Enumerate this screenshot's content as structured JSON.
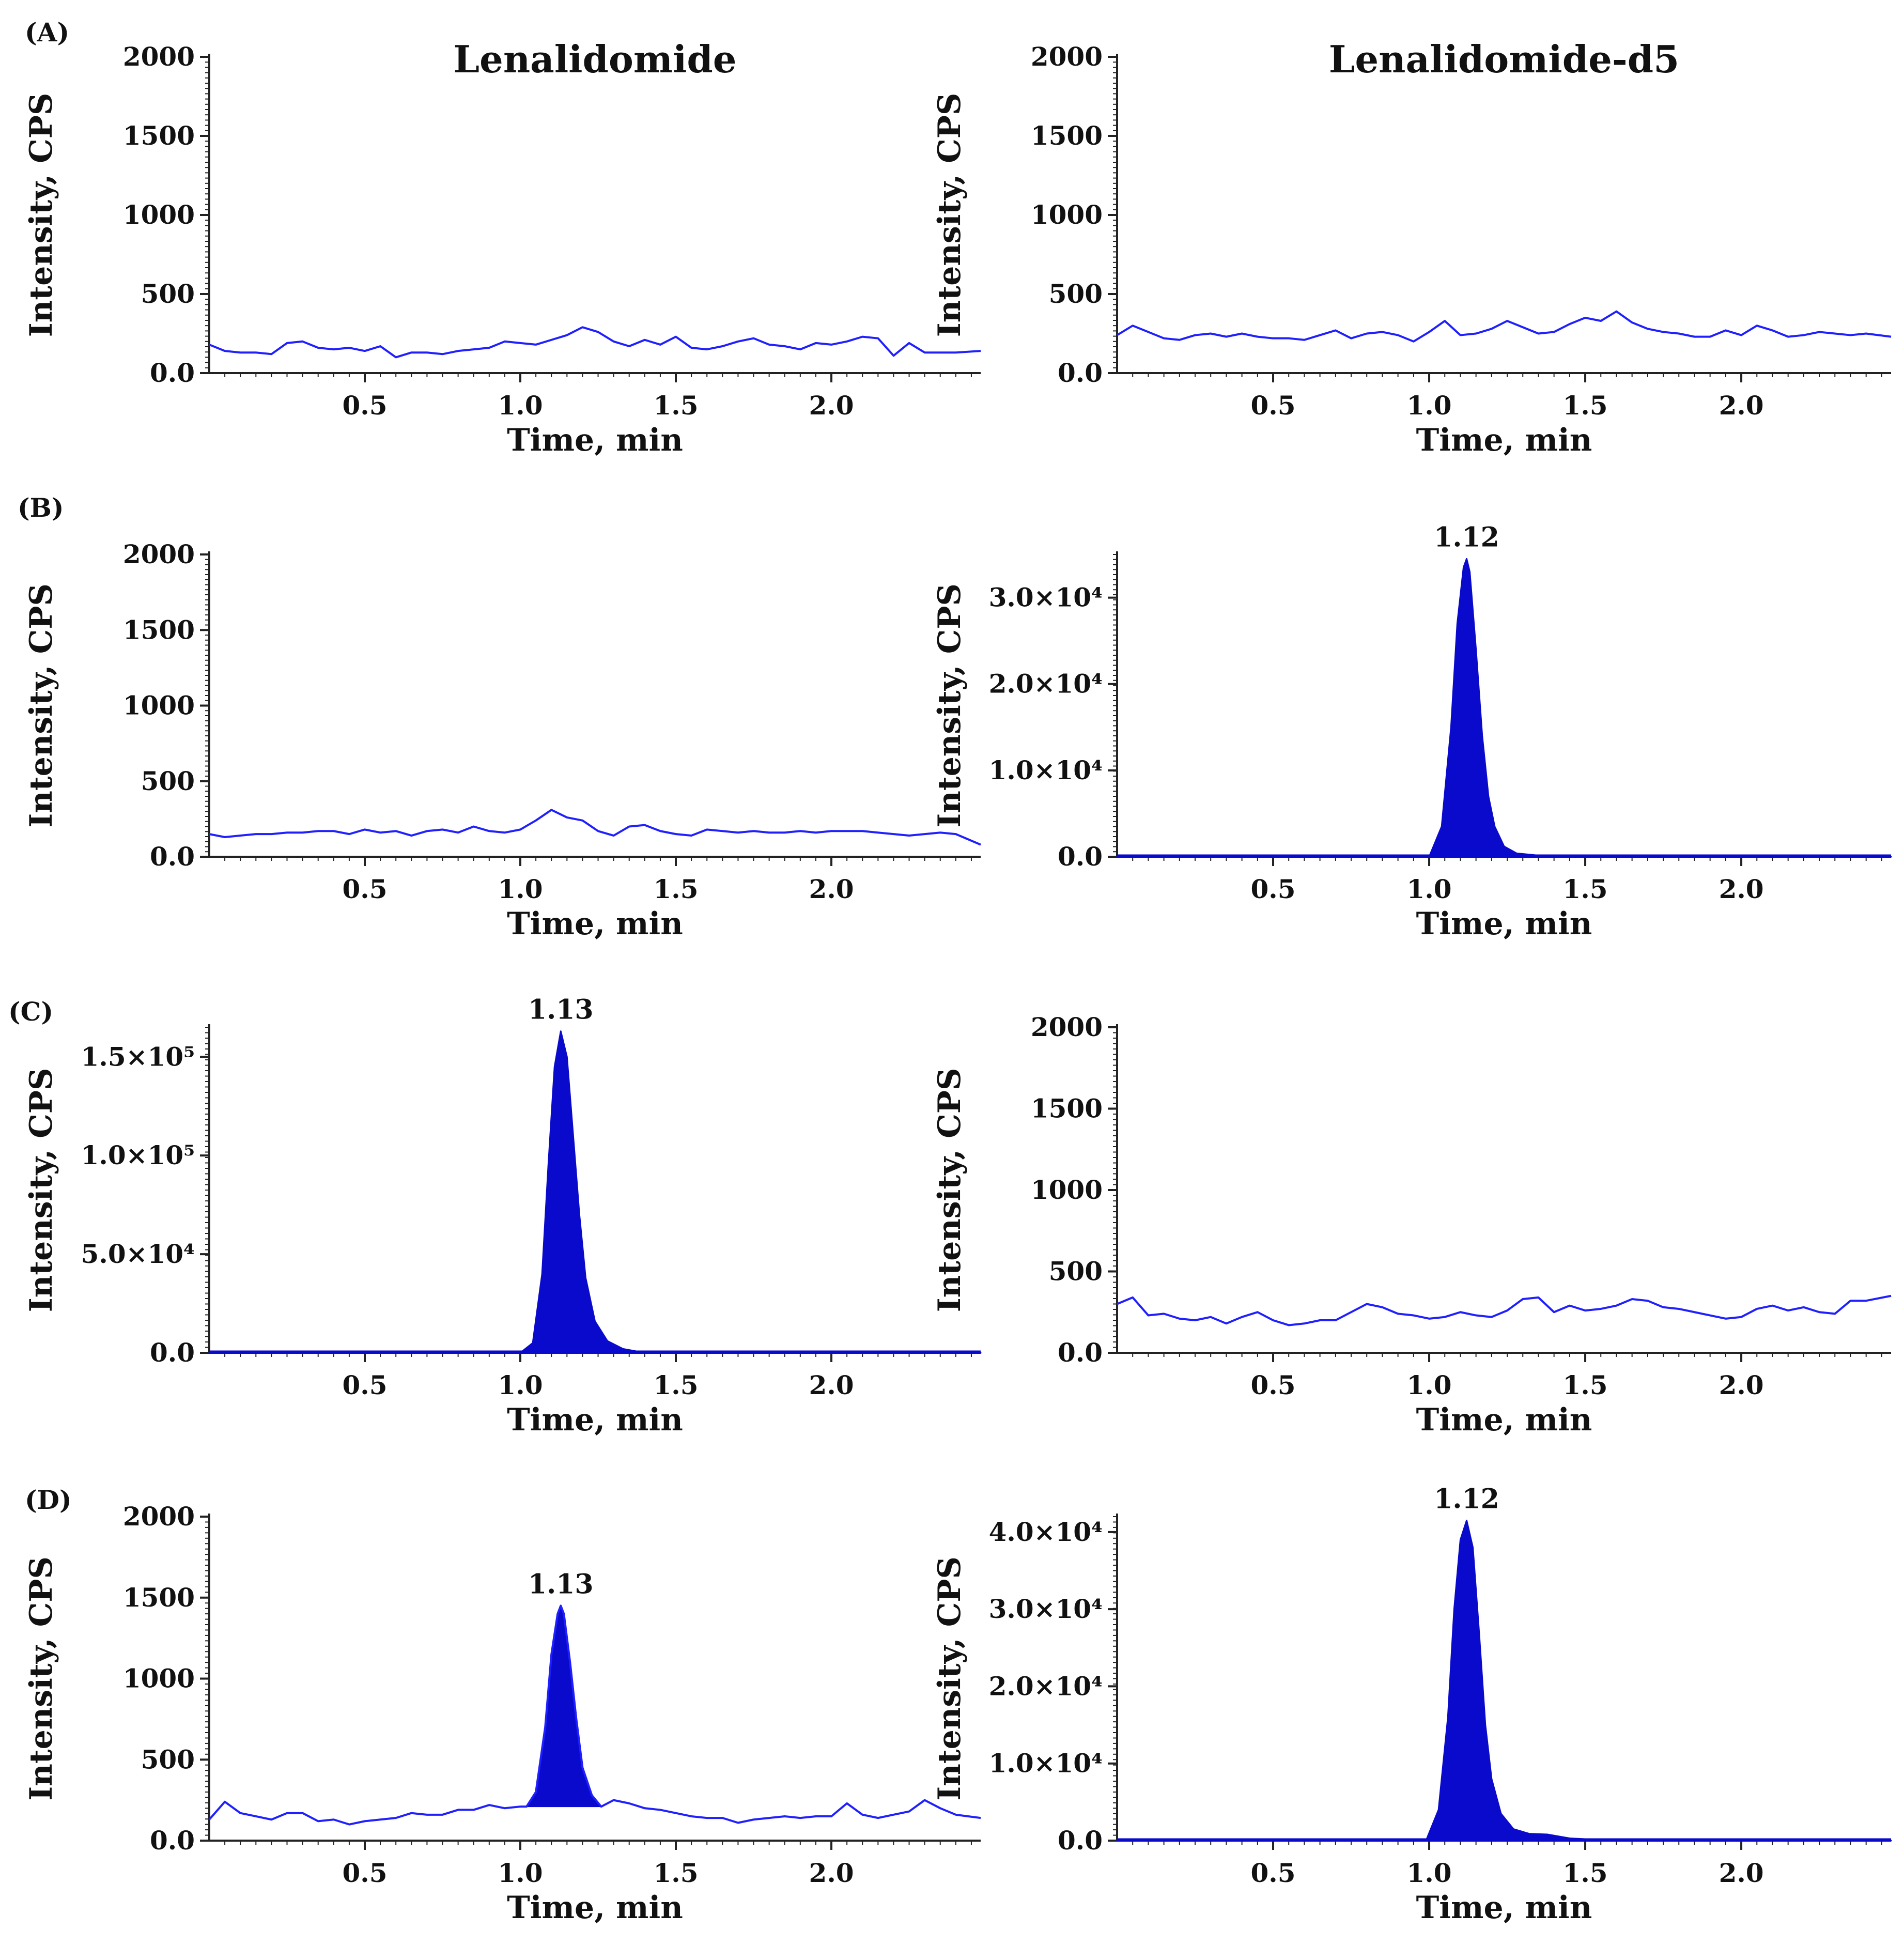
{
  "figure": {
    "panel_letters": [
      "(A)",
      "(B)",
      "(C)",
      "(D)"
    ]
  },
  "chart_data": [
    {
      "id": "A-left",
      "type": "line",
      "panel": "(A)",
      "title": "Lenalidomide",
      "xlabel": "Time, min",
      "ylabel": "Intensity, CPS",
      "xlim": [
        0,
        2.48
      ],
      "ylim": [
        0,
        2000
      ],
      "xticks": [
        0.5,
        1.0,
        1.5,
        2.0
      ],
      "xtick_labels": [
        "0.5",
        "1.0",
        "1.5",
        "2.0"
      ],
      "yticks": [
        0,
        500,
        1000,
        1500,
        2000
      ],
      "ytick_labels": [
        "0.0",
        "500",
        "1000",
        "1500",
        "2000"
      ],
      "line_color": "#1f1fff",
      "series": [
        {
          "name": "baseline",
          "x": [
            0.0,
            0.05,
            0.1,
            0.15,
            0.2,
            0.25,
            0.3,
            0.35,
            0.4,
            0.45,
            0.5,
            0.55,
            0.6,
            0.65,
            0.7,
            0.75,
            0.8,
            0.85,
            0.9,
            0.95,
            1.0,
            1.05,
            1.1,
            1.15,
            1.2,
            1.25,
            1.3,
            1.35,
            1.4,
            1.45,
            1.5,
            1.55,
            1.6,
            1.65,
            1.7,
            1.75,
            1.8,
            1.85,
            1.9,
            1.95,
            2.0,
            2.05,
            2.1,
            2.15,
            2.2,
            2.25,
            2.3,
            2.35,
            2.4,
            2.48
          ],
          "y": [
            180,
            140,
            130,
            130,
            120,
            190,
            200,
            160,
            150,
            160,
            140,
            170,
            100,
            130,
            130,
            120,
            140,
            150,
            160,
            200,
            190,
            180,
            210,
            240,
            290,
            260,
            200,
            170,
            210,
            180,
            230,
            160,
            150,
            170,
            200,
            220,
            180,
            170,
            150,
            190,
            180,
            200,
            230,
            220,
            110,
            190,
            130,
            130,
            130,
            140
          ]
        }
      ]
    },
    {
      "id": "A-right",
      "type": "line",
      "panel": "(A)",
      "title": "Lenalidomide-d5",
      "xlabel": "Time, min",
      "ylabel": "Intensity, CPS",
      "xlim": [
        0,
        2.48
      ],
      "ylim": [
        0,
        2000
      ],
      "xticks": [
        0.5,
        1.0,
        1.5,
        2.0
      ],
      "xtick_labels": [
        "0.5",
        "1.0",
        "1.5",
        "2.0"
      ],
      "yticks": [
        0,
        500,
        1000,
        1500,
        2000
      ],
      "ytick_labels": [
        "0.0",
        "500",
        "1000",
        "1500",
        "2000"
      ],
      "line_color": "#1f1fff",
      "series": [
        {
          "name": "baseline",
          "x": [
            0.0,
            0.05,
            0.1,
            0.15,
            0.2,
            0.25,
            0.3,
            0.35,
            0.4,
            0.45,
            0.5,
            0.55,
            0.6,
            0.65,
            0.7,
            0.75,
            0.8,
            0.85,
            0.9,
            0.95,
            1.0,
            1.05,
            1.1,
            1.15,
            1.2,
            1.25,
            1.3,
            1.35,
            1.4,
            1.45,
            1.5,
            1.55,
            1.6,
            1.65,
            1.7,
            1.75,
            1.8,
            1.85,
            1.9,
            1.95,
            2.0,
            2.05,
            2.1,
            2.15,
            2.2,
            2.25,
            2.3,
            2.35,
            2.4,
            2.48
          ],
          "y": [
            240,
            300,
            260,
            220,
            210,
            240,
            250,
            230,
            250,
            230,
            220,
            220,
            210,
            240,
            270,
            220,
            250,
            260,
            240,
            200,
            260,
            330,
            240,
            250,
            280,
            330,
            290,
            250,
            260,
            310,
            350,
            330,
            390,
            320,
            280,
            260,
            250,
            230,
            230,
            270,
            240,
            300,
            270,
            230,
            240,
            260,
            250,
            240,
            250,
            230
          ]
        }
      ]
    },
    {
      "id": "B-left",
      "type": "line",
      "panel": "(B)",
      "xlabel": "Time, min",
      "ylabel": "Intensity, CPS",
      "xlim": [
        0,
        2.48
      ],
      "ylim": [
        0,
        2000
      ],
      "xticks": [
        0.5,
        1.0,
        1.5,
        2.0
      ],
      "xtick_labels": [
        "0.5",
        "1.0",
        "1.5",
        "2.0"
      ],
      "yticks": [
        0,
        500,
        1000,
        1500,
        2000
      ],
      "ytick_labels": [
        "0.0",
        "500",
        "1000",
        "1500",
        "2000"
      ],
      "line_color": "#1f1fff",
      "series": [
        {
          "name": "baseline",
          "x": [
            0.0,
            0.05,
            0.1,
            0.15,
            0.2,
            0.25,
            0.3,
            0.35,
            0.4,
            0.45,
            0.5,
            0.55,
            0.6,
            0.65,
            0.7,
            0.75,
            0.8,
            0.85,
            0.9,
            0.95,
            1.0,
            1.05,
            1.1,
            1.15,
            1.2,
            1.25,
            1.3,
            1.35,
            1.4,
            1.45,
            1.5,
            1.55,
            1.6,
            1.65,
            1.7,
            1.75,
            1.8,
            1.85,
            1.9,
            1.95,
            2.0,
            2.05,
            2.1,
            2.15,
            2.2,
            2.25,
            2.3,
            2.35,
            2.4,
            2.48
          ],
          "y": [
            150,
            130,
            140,
            150,
            150,
            160,
            160,
            170,
            170,
            150,
            180,
            160,
            170,
            140,
            170,
            180,
            160,
            200,
            170,
            160,
            180,
            240,
            310,
            260,
            240,
            170,
            140,
            200,
            210,
            170,
            150,
            140,
            180,
            170,
            160,
            170,
            160,
            160,
            170,
            160,
            170,
            170,
            170,
            160,
            150,
            140,
            150,
            160,
            150,
            80
          ]
        }
      ]
    },
    {
      "id": "B-right",
      "type": "area",
      "panel": "(B)",
      "xlabel": "Time, min",
      "ylabel": "Intensity, CPS",
      "xlim": [
        0,
        2.48
      ],
      "ylim": [
        0,
        35000
      ],
      "xticks": [
        0.5,
        1.0,
        1.5,
        2.0
      ],
      "xtick_labels": [
        "0.5",
        "1.0",
        "1.5",
        "2.0"
      ],
      "yticks": [
        0,
        10000,
        20000,
        30000
      ],
      "ytick_labels": [
        "0.0",
        "1.0×10⁴",
        "2.0×10⁴",
        "3.0×10⁴"
      ],
      "peak": {
        "x": 1.12,
        "y": 34500,
        "label": "1.12",
        "fill_color": "#0a0acd"
      },
      "series": [
        {
          "name": "peak",
          "x": [
            0.0,
            0.9,
            1.0,
            1.04,
            1.07,
            1.09,
            1.11,
            1.12,
            1.13,
            1.15,
            1.17,
            1.19,
            1.21,
            1.24,
            1.28,
            1.35,
            1.5,
            1.85,
            2.48
          ],
          "y": [
            0,
            0,
            0,
            3500,
            15000,
            27000,
            33500,
            34500,
            33000,
            24000,
            14000,
            7000,
            3500,
            1200,
            400,
            150,
            50,
            0,
            0
          ]
        }
      ]
    },
    {
      "id": "C-left",
      "type": "area",
      "panel": "(C)",
      "xlabel": "Time, min",
      "ylabel": "Intensity, CPS",
      "xlim": [
        0,
        2.48
      ],
      "ylim": [
        0,
        165000
      ],
      "xticks": [
        0.5,
        1.0,
        1.5,
        2.0
      ],
      "xtick_labels": [
        "0.5",
        "1.0",
        "1.5",
        "2.0"
      ],
      "yticks": [
        0,
        50000,
        100000,
        150000
      ],
      "ytick_labels": [
        "0.0",
        "5.0×10⁴",
        "1.0×10⁵",
        "1.5×10⁵"
      ],
      "peak": {
        "x": 1.13,
        "y": 163000,
        "label": "1.13",
        "fill_color": "#0a0acd"
      },
      "series": [
        {
          "name": "peak",
          "x": [
            0.0,
            1.0,
            1.04,
            1.07,
            1.09,
            1.11,
            1.13,
            1.15,
            1.17,
            1.19,
            1.21,
            1.24,
            1.28,
            1.33,
            1.4,
            2.48
          ],
          "y": [
            0,
            0,
            5000,
            40000,
            95000,
            145000,
            163000,
            150000,
            110000,
            70000,
            38000,
            16000,
            6000,
            2000,
            0,
            0
          ]
        }
      ]
    },
    {
      "id": "C-right",
      "type": "line",
      "panel": "(C)",
      "xlabel": "Time, min",
      "ylabel": "Intensity, CPS",
      "xlim": [
        0,
        2.48
      ],
      "ylim": [
        0,
        2000
      ],
      "xticks": [
        0.5,
        1.0,
        1.5,
        2.0
      ],
      "xtick_labels": [
        "0.5",
        "1.0",
        "1.5",
        "2.0"
      ],
      "yticks": [
        0,
        500,
        1000,
        1500,
        2000
      ],
      "ytick_labels": [
        "0.0",
        "500",
        "1000",
        "1500",
        "2000"
      ],
      "line_color": "#1f1fff",
      "series": [
        {
          "name": "baseline",
          "x": [
            0.0,
            0.05,
            0.1,
            0.15,
            0.2,
            0.25,
            0.3,
            0.35,
            0.4,
            0.45,
            0.5,
            0.55,
            0.6,
            0.65,
            0.7,
            0.75,
            0.8,
            0.85,
            0.9,
            0.95,
            1.0,
            1.05,
            1.1,
            1.15,
            1.2,
            1.25,
            1.3,
            1.35,
            1.4,
            1.45,
            1.5,
            1.55,
            1.6,
            1.65,
            1.7,
            1.75,
            1.8,
            1.85,
            1.9,
            1.95,
            2.0,
            2.05,
            2.1,
            2.15,
            2.2,
            2.25,
            2.3,
            2.35,
            2.4,
            2.48
          ],
          "y": [
            300,
            340,
            230,
            240,
            210,
            200,
            220,
            180,
            220,
            250,
            200,
            170,
            180,
            200,
            200,
            250,
            300,
            280,
            240,
            230,
            210,
            220,
            250,
            230,
            220,
            260,
            330,
            340,
            250,
            290,
            260,
            270,
            290,
            330,
            320,
            280,
            270,
            250,
            230,
            210,
            220,
            270,
            290,
            260,
            280,
            250,
            240,
            320,
            320,
            350
          ]
        }
      ]
    },
    {
      "id": "D-left",
      "type": "line+area",
      "panel": "(D)",
      "xlabel": "Time, min",
      "ylabel": "Intensity, CPS",
      "xlim": [
        0,
        2.48
      ],
      "ylim": [
        0,
        2000
      ],
      "xticks": [
        0.5,
        1.0,
        1.5,
        2.0
      ],
      "xtick_labels": [
        "0.5",
        "1.0",
        "1.5",
        "2.0"
      ],
      "yticks": [
        0,
        500,
        1000,
        1500,
        2000
      ],
      "ytick_labels": [
        "0.0",
        "500",
        "1000",
        "1500",
        "2000"
      ],
      "line_color": "#1f1fff",
      "peak": {
        "x": 1.13,
        "y": 1450,
        "label": "1.13",
        "fill_color": "#0a0acd",
        "base": 210,
        "start": 1.02,
        "end": 1.26
      },
      "series": [
        {
          "name": "trace",
          "x": [
            0.0,
            0.05,
            0.1,
            0.15,
            0.2,
            0.25,
            0.3,
            0.35,
            0.4,
            0.45,
            0.5,
            0.55,
            0.6,
            0.65,
            0.7,
            0.75,
            0.8,
            0.85,
            0.9,
            0.95,
            1.0,
            1.02,
            1.05,
            1.08,
            1.1,
            1.12,
            1.13,
            1.14,
            1.16,
            1.18,
            1.2,
            1.23,
            1.26,
            1.3,
            1.35,
            1.4,
            1.45,
            1.5,
            1.55,
            1.6,
            1.65,
            1.7,
            1.75,
            1.8,
            1.85,
            1.9,
            1.95,
            2.0,
            2.05,
            2.1,
            2.15,
            2.2,
            2.25,
            2.3,
            2.35,
            2.4,
            2.48
          ],
          "y": [
            130,
            240,
            170,
            150,
            130,
            170,
            170,
            120,
            130,
            100,
            120,
            130,
            140,
            170,
            160,
            160,
            190,
            190,
            220,
            200,
            210,
            210,
            300,
            700,
            1150,
            1400,
            1450,
            1400,
            1100,
            750,
            450,
            280,
            210,
            250,
            230,
            200,
            190,
            170,
            150,
            140,
            140,
            110,
            130,
            140,
            150,
            140,
            150,
            150,
            230,
            160,
            140,
            160,
            180,
            250,
            200,
            160,
            140
          ]
        }
      ]
    },
    {
      "id": "D-right",
      "type": "area",
      "panel": "(D)",
      "xlabel": "Time, min",
      "ylabel": "Intensity, CPS",
      "xlim": [
        0,
        2.48
      ],
      "ylim": [
        0,
        42000
      ],
      "xticks": [
        0.5,
        1.0,
        1.5,
        2.0
      ],
      "xtick_labels": [
        "0.5",
        "1.0",
        "1.5",
        "2.0"
      ],
      "yticks": [
        0,
        10000,
        20000,
        30000,
        40000
      ],
      "ytick_labels": [
        "0.0",
        "1.0×10⁴",
        "2.0×10⁴",
        "3.0×10⁴",
        "4.0×10⁴"
      ],
      "peak": {
        "x": 1.12,
        "y": 41500,
        "label": "1.12",
        "fill_color": "#0a0acd"
      },
      "series": [
        {
          "name": "peak",
          "x": [
            0.0,
            0.9,
            0.99,
            1.03,
            1.06,
            1.08,
            1.1,
            1.12,
            1.14,
            1.16,
            1.18,
            1.2,
            1.23,
            1.27,
            1.32,
            1.38,
            1.45,
            1.55,
            1.85,
            2.48
          ],
          "y": [
            0,
            0,
            0,
            4000,
            16000,
            30000,
            39000,
            41500,
            38000,
            27000,
            15000,
            8000,
            3500,
            1500,
            900,
            800,
            300,
            100,
            0,
            0
          ]
        }
      ]
    }
  ]
}
